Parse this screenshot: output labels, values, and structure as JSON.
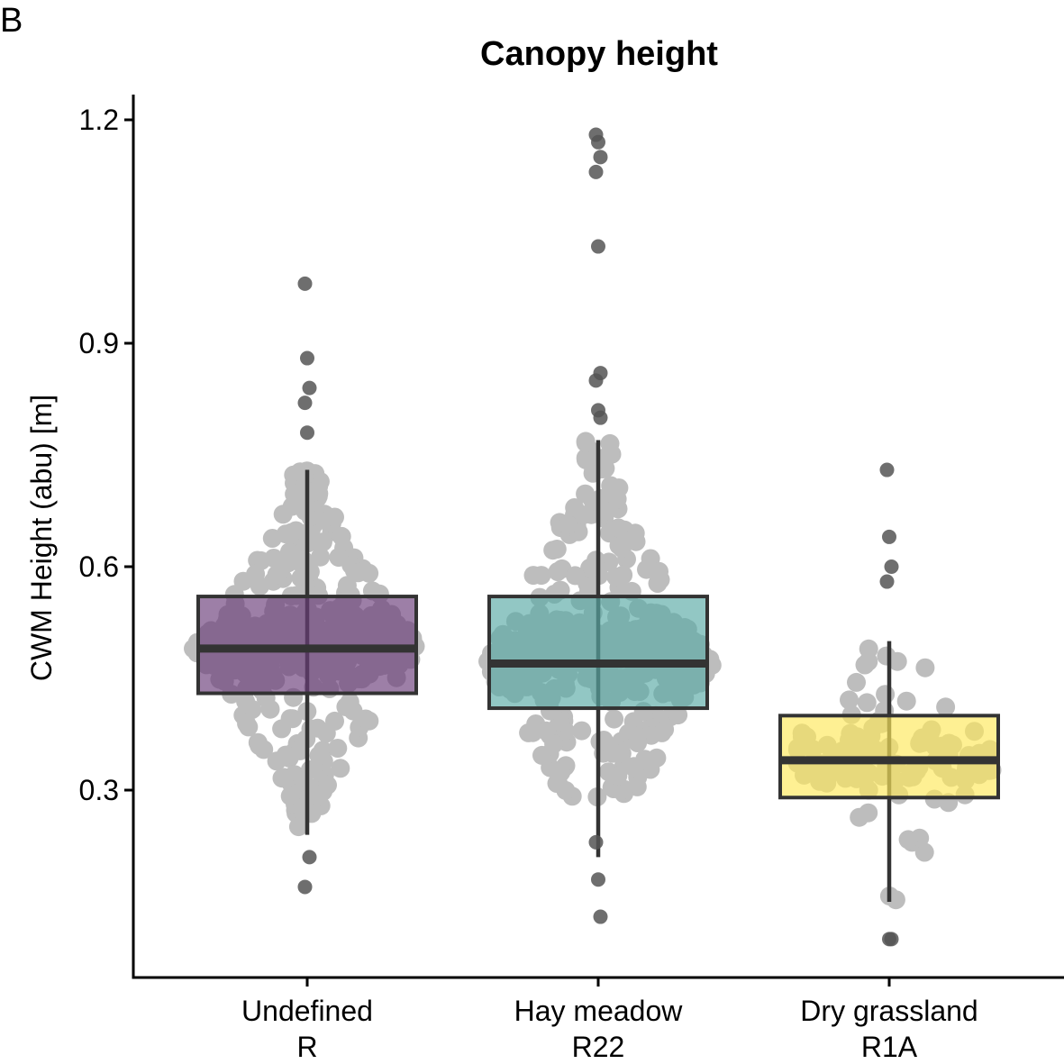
{
  "panel_label": "B",
  "chart_data": {
    "type": "box",
    "title": "Canopy height",
    "xlabel": "",
    "ylabel": "CWM Height (abu) [m]",
    "ylim": [
      0.05,
      1.23
    ],
    "yticks": [
      0.3,
      0.6,
      0.9,
      1.2
    ],
    "ytick_labels": [
      "0.3",
      "0.6",
      "0.9",
      "1.2"
    ],
    "grid": false,
    "legend": "none",
    "jitter_color": "#bdbdbd",
    "outlier_color": "#555555",
    "groups": [
      {
        "category": [
          "Undefined",
          "R"
        ],
        "color": "#6a3d7a",
        "q1": 0.43,
        "median": 0.49,
        "q3": 0.56,
        "whisker_low": 0.24,
        "whisker_high": 0.73,
        "outliers": [
          0.98,
          0.88,
          0.84,
          0.82,
          0.78,
          0.21,
          0.17
        ],
        "n_points": 520,
        "point_min": 0.25,
        "point_max": 0.73
      },
      {
        "category": [
          "Hay meadow",
          "R22"
        ],
        "color": "#5aaaa5",
        "q1": 0.41,
        "median": 0.47,
        "q3": 0.56,
        "whisker_low": 0.21,
        "whisker_high": 0.77,
        "outliers": [
          1.18,
          1.17,
          1.15,
          1.13,
          1.03,
          0.86,
          0.85,
          0.81,
          0.8,
          0.23,
          0.18,
          0.13
        ],
        "n_points": 480,
        "point_min": 0.29,
        "point_max": 0.77
      },
      {
        "category": [
          "Dry grassland",
          "R1A"
        ],
        "color": "#fde85b",
        "q1": 0.29,
        "median": 0.34,
        "q3": 0.4,
        "whisker_low": 0.15,
        "whisker_high": 0.5,
        "outliers": [
          0.73,
          0.64,
          0.6,
          0.58,
          0.1,
          0.1
        ],
        "n_points": 120,
        "point_min": 0.15,
        "point_max": 0.5
      }
    ]
  }
}
